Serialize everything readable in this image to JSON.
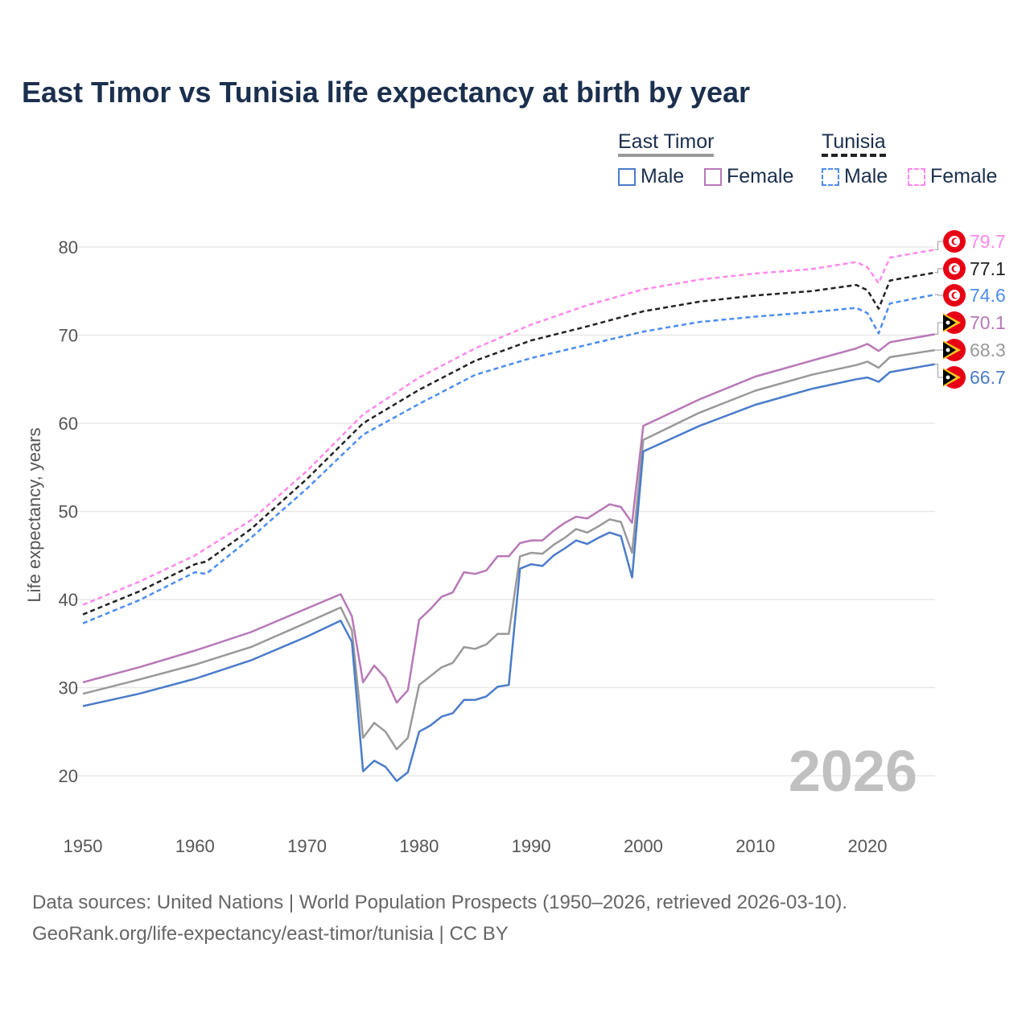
{
  "chart_data": {
    "type": "line",
    "title": "East Timor vs Tunisia life expectancy at birth by year",
    "xlabel": "",
    "ylabel": "Life expectancy, years",
    "xlim": [
      1950,
      2026
    ],
    "ylim": [
      15,
      82
    ],
    "x_ticks": [
      "1950",
      "1960",
      "1970",
      "1980",
      "1990",
      "2000",
      "2010",
      "2020"
    ],
    "y_ticks": [
      "20",
      "30",
      "40",
      "50",
      "60",
      "70",
      "80"
    ],
    "watermark_year": "2026",
    "legend": {
      "east_timor": "East Timor",
      "tunisia": "Tunisia",
      "male": "Male",
      "female": "Female"
    },
    "series": [
      {
        "name": "Tunisia Female",
        "country": "Tunisia",
        "color": "#ff88ee",
        "dashed": true,
        "end_label": "79.7",
        "x": [
          1950,
          1955,
          1960,
          1965,
          1970,
          1975,
          1980,
          1985,
          1990,
          1995,
          2000,
          2005,
          2010,
          2015,
          2019,
          2020,
          2021,
          2022,
          2026
        ],
        "y": [
          39.4,
          42.0,
          45.0,
          49.0,
          54.6,
          61.0,
          65.2,
          68.5,
          71.2,
          73.4,
          75.2,
          76.3,
          77.0,
          77.5,
          78.3,
          77.7,
          75.9,
          78.8,
          79.7
        ]
      },
      {
        "name": "Tunisia",
        "country": "Tunisia",
        "color": "#222222",
        "dashed": true,
        "end_label": "77.1",
        "x": [
          1950,
          1955,
          1960,
          1961,
          1965,
          1970,
          1975,
          1980,
          1985,
          1990,
          1995,
          2000,
          2005,
          2010,
          2015,
          2019,
          2020,
          2021,
          2022,
          2026
        ],
        "y": [
          38.3,
          40.9,
          44.0,
          44.3,
          48.0,
          53.7,
          60.0,
          63.8,
          67.1,
          69.4,
          71.0,
          72.7,
          73.8,
          74.5,
          75.0,
          75.7,
          75.1,
          73.0,
          76.2,
          77.1
        ]
      },
      {
        "name": "Tunisia Male",
        "country": "Tunisia",
        "color": "#4b8ef0",
        "dashed": true,
        "end_label": "74.6",
        "x": [
          1950,
          1955,
          1960,
          1961,
          1965,
          1970,
          1975,
          1980,
          1985,
          1990,
          1995,
          2000,
          2005,
          2010,
          2015,
          2019,
          2020,
          2021,
          2022,
          2026
        ],
        "y": [
          37.3,
          39.9,
          43.1,
          42.9,
          47.0,
          52.6,
          58.7,
          62.2,
          65.5,
          67.4,
          68.9,
          70.4,
          71.5,
          72.1,
          72.6,
          73.1,
          72.5,
          70.2,
          73.6,
          74.6
        ]
      },
      {
        "name": "East Timor Female",
        "country": "East Timor",
        "color": "#b878b8",
        "dashed": false,
        "end_label": "70.1",
        "x": [
          1950,
          1955,
          1960,
          1965,
          1970,
          1973,
          1974,
          1975,
          1976,
          1977,
          1978,
          1979,
          1980,
          1981,
          1982,
          1983,
          1984,
          1985,
          1986,
          1987,
          1988,
          1989,
          1990,
          1991,
          1992,
          1993,
          1994,
          1995,
          1996,
          1997,
          1998,
          1999,
          2000,
          2005,
          2010,
          2015,
          2019,
          2020,
          2021,
          2022,
          2026
        ],
        "y": [
          30.6,
          32.3,
          34.2,
          36.3,
          39.0,
          40.6,
          38.1,
          30.6,
          32.5,
          31.1,
          28.3,
          29.7,
          37.7,
          38.9,
          40.3,
          40.8,
          43.1,
          42.9,
          43.3,
          44.9,
          44.9,
          46.4,
          46.7,
          46.7,
          47.8,
          48.7,
          49.4,
          49.2,
          50.0,
          50.8,
          50.5,
          48.7,
          59.7,
          62.7,
          65.3,
          67.1,
          68.5,
          69.0,
          68.2,
          69.2,
          70.1
        ]
      },
      {
        "name": "East Timor",
        "country": "East Timor",
        "color": "#999999",
        "dashed": false,
        "end_label": "68.3",
        "x": [
          1950,
          1955,
          1960,
          1965,
          1970,
          1973,
          1974,
          1975,
          1976,
          1977,
          1978,
          1979,
          1980,
          1981,
          1982,
          1983,
          1984,
          1985,
          1986,
          1987,
          1988,
          1989,
          1990,
          1991,
          1992,
          1993,
          1994,
          1995,
          1996,
          1997,
          1998,
          1999,
          2000,
          2005,
          2010,
          2015,
          2019,
          2020,
          2021,
          2022,
          2026
        ],
        "y": [
          29.3,
          30.9,
          32.6,
          34.6,
          37.4,
          39.1,
          36.5,
          24.3,
          26.0,
          25.0,
          23.0,
          24.3,
          30.3,
          31.3,
          32.3,
          32.8,
          34.6,
          34.4,
          34.9,
          36.1,
          36.1,
          44.9,
          45.3,
          45.2,
          46.2,
          47.0,
          48.0,
          47.6,
          48.3,
          49.1,
          48.8,
          45.3,
          58.1,
          61.2,
          63.7,
          65.5,
          66.6,
          67.0,
          66.3,
          67.5,
          68.3
        ]
      },
      {
        "name": "East Timor Male",
        "country": "East Timor",
        "color": "#4a7cc9",
        "dashed": false,
        "end_label": "66.7",
        "x": [
          1950,
          1955,
          1960,
          1965,
          1970,
          1973,
          1974,
          1975,
          1976,
          1977,
          1978,
          1979,
          1980,
          1981,
          1982,
          1983,
          1984,
          1985,
          1986,
          1987,
          1988,
          1989,
          1990,
          1991,
          1992,
          1993,
          1994,
          1995,
          1996,
          1997,
          1998,
          1999,
          2000,
          2005,
          2010,
          2015,
          2019,
          2020,
          2021,
          2022,
          2026
        ],
        "y": [
          27.9,
          29.3,
          31.0,
          33.1,
          35.8,
          37.6,
          35.2,
          20.5,
          21.7,
          21.0,
          19.4,
          20.4,
          25.0,
          25.7,
          26.7,
          27.1,
          28.6,
          28.6,
          29.0,
          30.1,
          30.3,
          43.5,
          44.0,
          43.8,
          45.0,
          45.8,
          46.7,
          46.3,
          47.0,
          47.6,
          47.2,
          42.5,
          56.8,
          59.7,
          62.1,
          63.9,
          65.0,
          65.2,
          64.7,
          65.8,
          66.7
        ]
      }
    ]
  },
  "footer": {
    "line1": "Data sources: United Nations | World Population Prospects (1950–2026, retrieved 2026-03-10).",
    "line2": "GeoRank.org/life-expectancy/east-timor/tunisia | CC BY"
  }
}
